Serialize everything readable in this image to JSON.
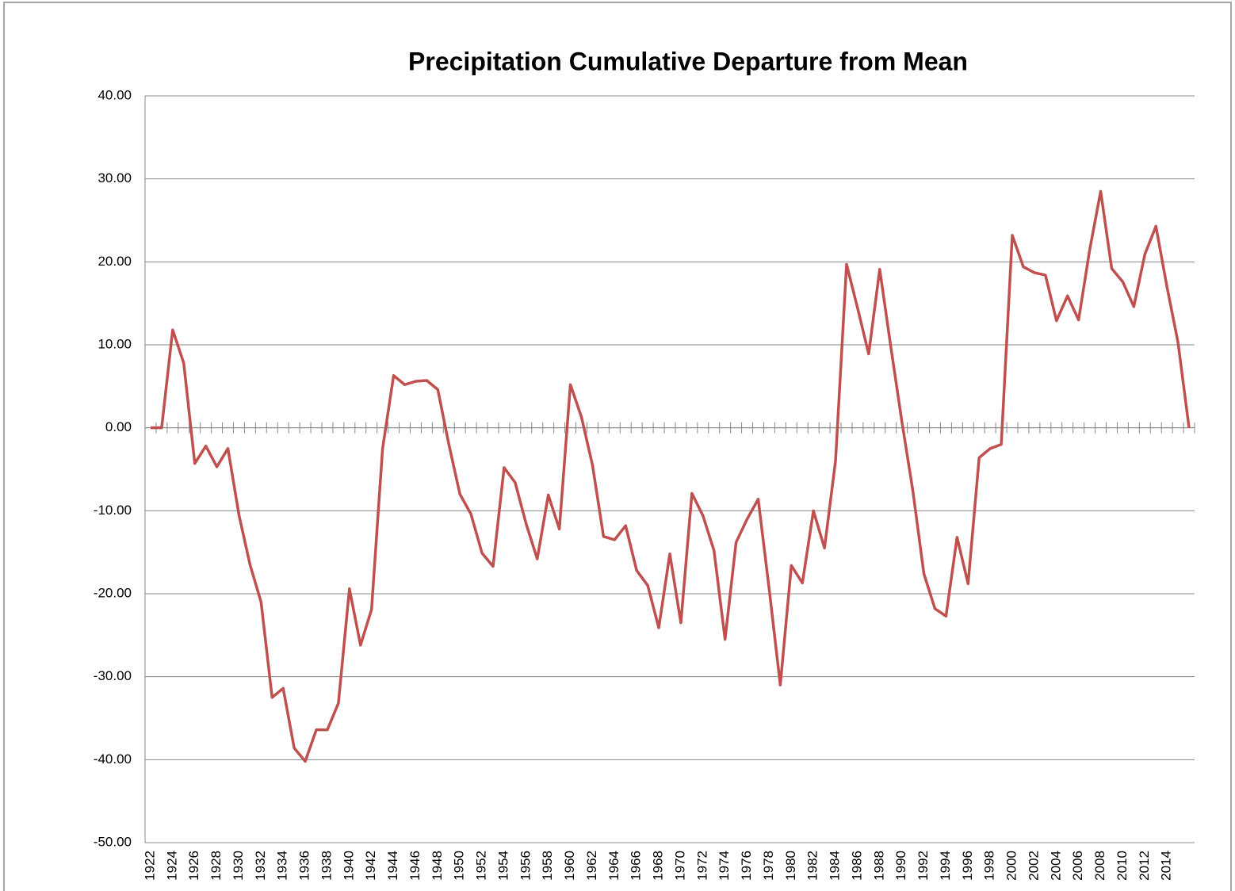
{
  "chart_data": {
    "type": "line",
    "title": "Precipitation Cumulative Departure from Mean",
    "categories": [
      "1922",
      null,
      "1924",
      null,
      "1926",
      null,
      "1928",
      null,
      "1930",
      null,
      "1932",
      null,
      "1934",
      null,
      "1936",
      null,
      "1938",
      null,
      "1940",
      null,
      "1942",
      null,
      "1944",
      null,
      "1946",
      null,
      "1948",
      null,
      "1950",
      null,
      "1952",
      null,
      "1954",
      null,
      "1956",
      null,
      "1958",
      null,
      "1960",
      null,
      "1962",
      null,
      "1964",
      null,
      "1966",
      null,
      "1968",
      null,
      "1970",
      null,
      "1972",
      null,
      "1974",
      null,
      "1976",
      null,
      "1978",
      null,
      "1980",
      null,
      "1982",
      null,
      "1984",
      null,
      "1986",
      null,
      "1988",
      null,
      "1990",
      null,
      "1992",
      null,
      "1994",
      null,
      "1996",
      null,
      "1998",
      null,
      "2000",
      null,
      "2002",
      null,
      "2004",
      null,
      "2006",
      null,
      "2008",
      null,
      "2010",
      null,
      "2012",
      null,
      "2014",
      null,
      null
    ],
    "values": [
      0,
      0,
      11.8,
      7.8,
      -4.3,
      -2.2,
      -4.7,
      -2.5,
      -10.5,
      -16.5,
      -21,
      -32.5,
      -31.4,
      -38.6,
      -40.2,
      -36.4,
      -36.4,
      -33.2,
      -19.4,
      -26.2,
      -21.9,
      -2.5,
      6.3,
      5.2,
      5.6,
      5.7,
      4.6,
      -2,
      -8,
      -10.4,
      -15.1,
      -16.7,
      -4.8,
      -6.6,
      -11.6,
      -15.8,
      -8.1,
      -12.2,
      5.2,
      1.3,
      -4.5,
      -13.1,
      -13.5,
      -11.8,
      -17.2,
      -19,
      -24.1,
      -15.2,
      -23.5,
      -7.9,
      -10.6,
      -14.8,
      -25.5,
      -13.8,
      -11,
      -8.6,
      -19.5,
      -31,
      -16.6,
      -18.7,
      -10,
      -14.5,
      -4,
      19.7,
      14.4,
      8.9,
      19.1,
      9.8,
      0.8,
      -7.6,
      -17.6,
      -21.8,
      -22.7,
      -13.2,
      -18.8,
      -3.6,
      -2.5,
      -2,
      23.2,
      19.4,
      18.7,
      18.4,
      12.9,
      15.9,
      13,
      21.4,
      28.5,
      19.2,
      17.6,
      14.6,
      20.9,
      24.3,
      17,
      10.3,
      0
    ],
    "color": "#c0504d",
    "ylim": [
      -50,
      40
    ],
    "yticks": [
      {
        "value": -50,
        "label": "-50.00"
      },
      {
        "value": -40,
        "label": "-40.00"
      },
      {
        "value": -30,
        "label": "-30.00"
      },
      {
        "value": -20,
        "label": "-20.00"
      },
      {
        "value": -10,
        "label": "-10.00"
      },
      {
        "value": 0,
        "label": "0.00"
      },
      {
        "value": 10,
        "label": "10.00"
      },
      {
        "value": 20,
        "label": "20.00"
      },
      {
        "value": 30,
        "label": "30.00"
      },
      {
        "value": 40,
        "label": "40.00"
      }
    ],
    "grid": true
  }
}
